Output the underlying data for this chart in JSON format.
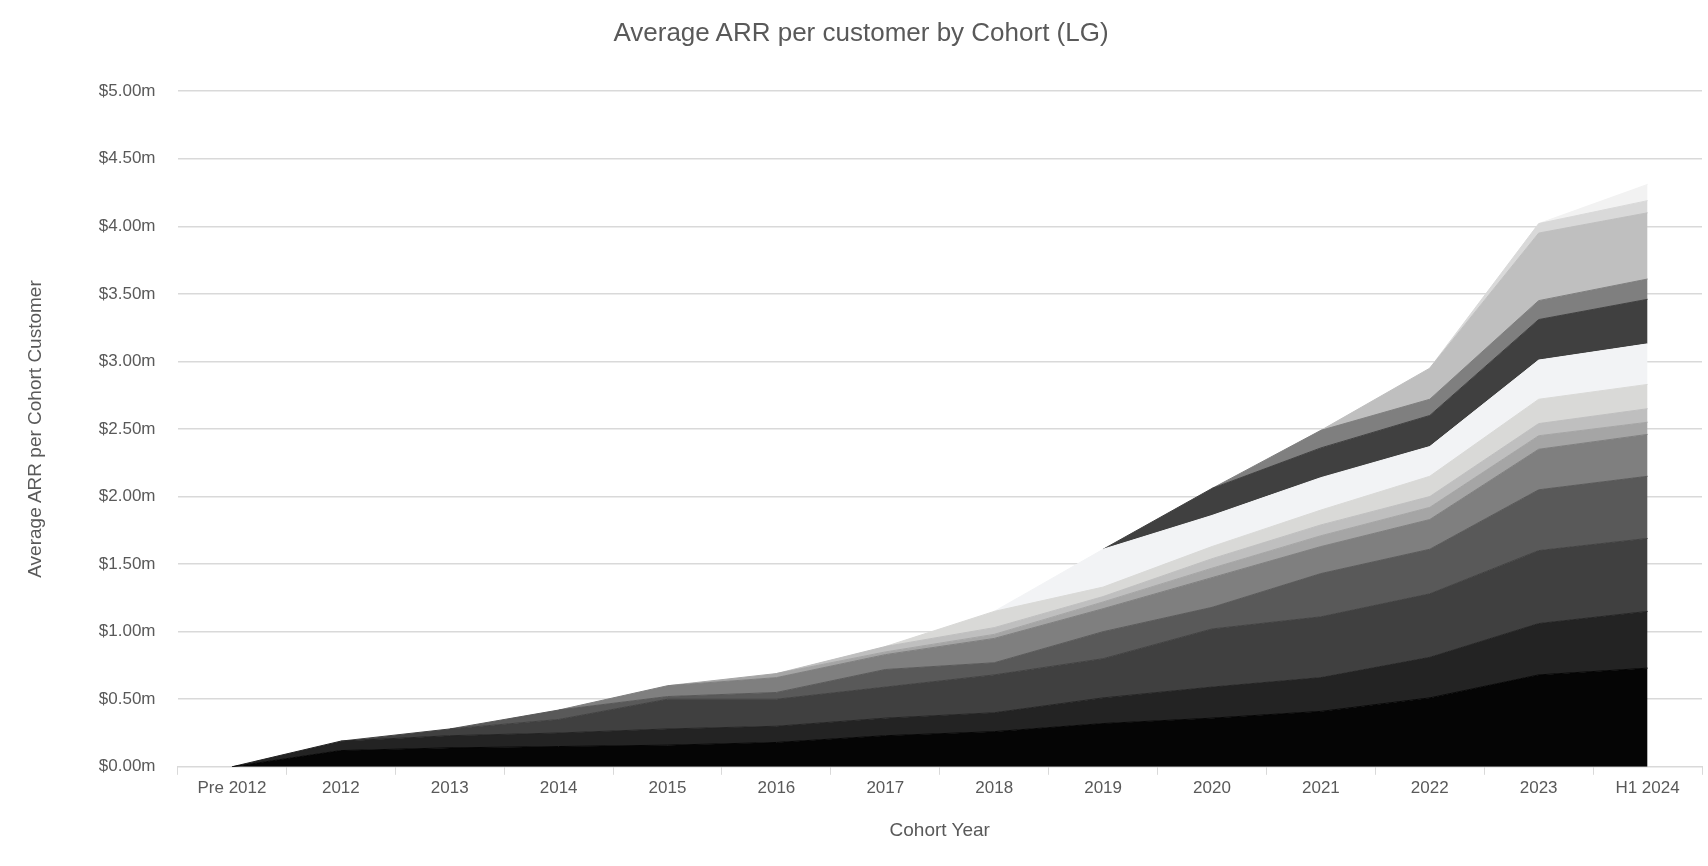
{
  "chart_data": {
    "type": "area",
    "stacked": true,
    "title": "Average ARR per customer by Cohort (LG)",
    "xlabel": "Cohort Year",
    "ylabel": "Average ARR per Cohort Customer",
    "categories": [
      "Pre 2012",
      "2012",
      "2013",
      "2014",
      "2015",
      "2016",
      "2017",
      "2018",
      "2019",
      "2020",
      "2021",
      "2022",
      "2023",
      "H1 2024"
    ],
    "series": [
      {
        "color": "#050505",
        "values": [
          0,
          0.12,
          0.14,
          0.15,
          0.16,
          0.18,
          0.23,
          0.26,
          0.32,
          0.36,
          0.41,
          0.51,
          0.68,
          0.73
        ]
      },
      {
        "color": "#232323",
        "values": [
          0,
          0.07,
          0.09,
          0.1,
          0.12,
          0.12,
          0.13,
          0.14,
          0.19,
          0.23,
          0.25,
          0.3,
          0.38,
          0.42
        ]
      },
      {
        "color": "#404040",
        "values": [
          null,
          0,
          0.05,
          0.1,
          0.22,
          0.2,
          0.23,
          0.28,
          0.29,
          0.43,
          0.45,
          0.47,
          0.54,
          0.54
        ]
      },
      {
        "color": "#595959",
        "values": [
          null,
          null,
          0,
          0.07,
          0.02,
          0.05,
          0.13,
          0.09,
          0.2,
          0.16,
          0.32,
          0.33,
          0.45,
          0.46
        ]
      },
      {
        "color": "#7f7f7f",
        "values": [
          null,
          null,
          null,
          0,
          0.08,
          0.11,
          0.11,
          0.18,
          0.17,
          0.22,
          0.2,
          0.22,
          0.3,
          0.31
        ]
      },
      {
        "color": "#a5a5a5",
        "values": [
          null,
          null,
          null,
          null,
          0,
          0.03,
          0.02,
          0.03,
          0.05,
          0.07,
          0.08,
          0.09,
          0.1,
          0.09
        ]
      },
      {
        "color": "#bfbfbf",
        "values": [
          null,
          null,
          null,
          null,
          null,
          0,
          0.04,
          0.05,
          0.04,
          0.07,
          0.08,
          0.08,
          0.09,
          0.1
        ]
      },
      {
        "color": "#d9d9d7",
        "values": [
          null,
          null,
          null,
          null,
          null,
          null,
          0,
          0.12,
          0.07,
          0.09,
          0.11,
          0.15,
          0.18,
          0.18
        ]
      },
      {
        "color": "#f2f3f5",
        "values": [
          null,
          null,
          null,
          null,
          null,
          null,
          null,
          0,
          0.28,
          0.23,
          0.24,
          0.22,
          0.29,
          0.3
        ]
      },
      {
        "color": "#404040",
        "values": [
          null,
          null,
          null,
          null,
          null,
          null,
          null,
          null,
          0,
          0.2,
          0.22,
          0.23,
          0.3,
          0.33
        ]
      },
      {
        "color": "#7f7f7f",
        "values": [
          null,
          null,
          null,
          null,
          null,
          null,
          null,
          null,
          null,
          0,
          0.13,
          0.12,
          0.14,
          0.15
        ]
      },
      {
        "color": "#bfbfbf",
        "values": [
          null,
          null,
          null,
          null,
          null,
          null,
          null,
          null,
          null,
          null,
          0,
          0.23,
          0.5,
          0.49
        ]
      },
      {
        "color": "#d9d9d9",
        "values": [
          null,
          null,
          null,
          null,
          null,
          null,
          null,
          null,
          null,
          null,
          null,
          0,
          0.07,
          0.09
        ]
      },
      {
        "color": "#f2f2f2",
        "values": [
          null,
          null,
          null,
          null,
          null,
          null,
          null,
          null,
          null,
          null,
          null,
          null,
          0,
          0.12
        ]
      }
    ],
    "ylim": [
      0,
      5
    ],
    "yticks": [
      {
        "value": 0,
        "label": "$0.00m"
      },
      {
        "value": 0.5,
        "label": "$0.50m"
      },
      {
        "value": 1,
        "label": "$1.00m"
      },
      {
        "value": 1.5,
        "label": "$1.50m"
      },
      {
        "value": 2,
        "label": "$2.00m"
      },
      {
        "value": 2.5,
        "label": "$2.50m"
      },
      {
        "value": 3,
        "label": "$3.00m"
      },
      {
        "value": 3.5,
        "label": "$3.50m"
      },
      {
        "value": 4,
        "label": "$4.00m"
      },
      {
        "value": 4.5,
        "label": "$4.50m"
      },
      {
        "value": 5,
        "label": "$5.00m"
      }
    ],
    "grid": "y",
    "legend": false
  }
}
